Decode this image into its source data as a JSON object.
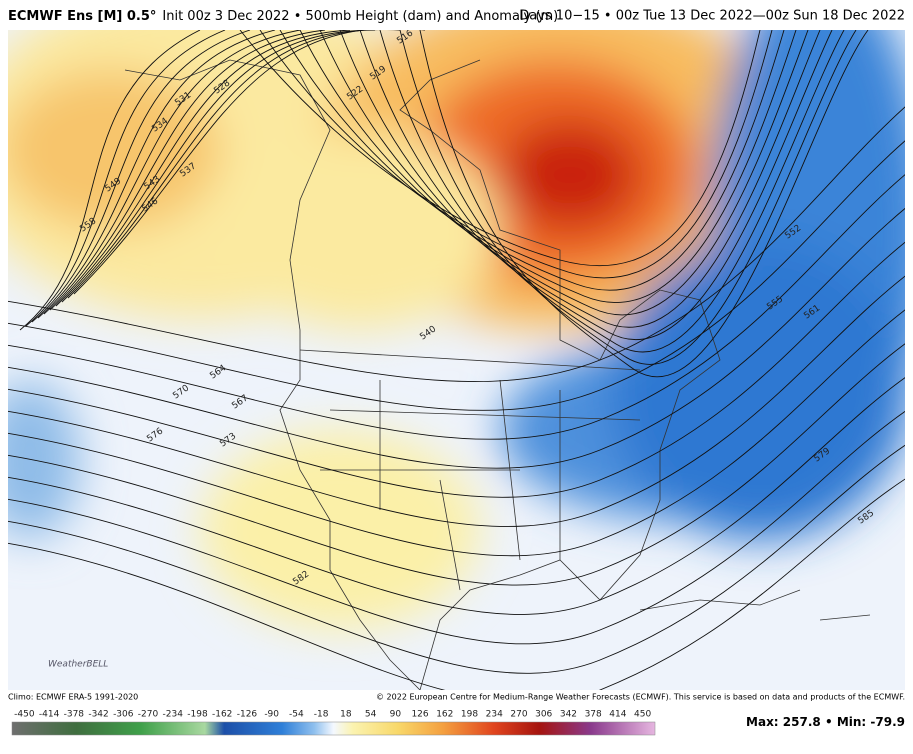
{
  "header": {
    "title_bold": "ECMWF Ens [M] 0.5°",
    "title_rest": "Init 00z 3 Dec 2022 • 500mb Height (dam) and Anomaly (m)",
    "period": "Days 10−15 • 00z Tue 13 Dec 2022—00z Sun 18 Dec 2022"
  },
  "map": {
    "contour_labels": [
      516,
      519,
      522,
      528,
      531,
      534,
      537,
      540,
      543,
      546,
      549,
      552,
      555,
      558,
      561,
      564,
      567,
      570,
      573,
      576,
      579,
      582,
      585
    ],
    "logo": "WeatherBELL"
  },
  "footer": {
    "climo": "Climo: ECMWF ERA-5 1991-2020",
    "copyright": "© 2022 European Centre for Medium-Range Weather Forecasts (ECMWF). This service is based on data and products of the ECMWF."
  },
  "colorbar": {
    "ticks": [
      -450,
      -414,
      -378,
      -342,
      -306,
      -270,
      -234,
      -198,
      -162,
      -126,
      -90,
      -54,
      -18,
      18,
      54,
      90,
      126,
      162,
      198,
      234,
      270,
      306,
      342,
      378,
      414,
      450
    ]
  },
  "stats": {
    "max_label": "Max:",
    "max": 257.8,
    "separator": "•",
    "min_label": "Min:",
    "min": -79.9
  }
}
